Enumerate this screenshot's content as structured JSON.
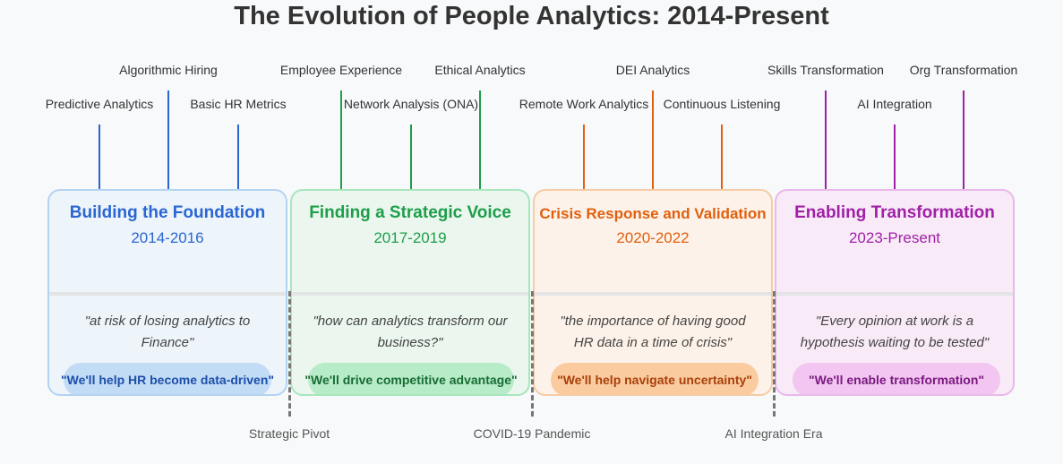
{
  "title": "The Evolution of People Analytics: 2014-Present",
  "phases": [
    {
      "heading": "Building the Foundation",
      "dates": "2014-2016",
      "quote": "\"at risk of losing analytics to Finance\"",
      "pill": "\"We'll help HR become data-driven\"",
      "color": "#2a66d2",
      "bg": "#edf4fa",
      "border": "#b3d3f2",
      "pill_bg": "#c3dcf6",
      "pill_text": "#1d4fa8"
    },
    {
      "heading": "Finding a Strategic Voice",
      "dates": "2017-2019",
      "quote": "\"how can analytics transform our business?\"",
      "pill": "\"We'll drive competitive advantage\"",
      "color": "#1e9e4a",
      "bg": "#eaf6ee",
      "border": "#a8e6bd",
      "pill_bg": "#b8ebc8",
      "pill_text": "#176d34"
    },
    {
      "heading": "Crisis Response and Validation",
      "dates": "2020-2022",
      "quote": "\"the importance of having good HR data in a time of crisis\"",
      "pill": "\"We'll help navigate uncertainty\"",
      "color": "#e0600f",
      "bg": "#fdf2e9",
      "border": "#f5cca4",
      "pill_bg": "#fbcba0",
      "pill_text": "#a8400a"
    },
    {
      "heading": "Enabling Transformation",
      "dates": "2023-Present",
      "quote": "\"Every opinion at work is a hypothesis waiting to be tested\"",
      "pill": "\"We'll enable transformation\"",
      "color": "#a020a8",
      "bg": "#f8eaf7",
      "border": "#eab8ec",
      "pill_bg": "#f2c6f1",
      "pill_text": "#7a1a80"
    }
  ],
  "milestones": [
    {
      "label": "Predictive Analytics",
      "color": "#2a66d2"
    },
    {
      "label": "Algorithmic Hiring",
      "color": "#2a66d2"
    },
    {
      "label": "Basic HR Metrics",
      "color": "#2a66d2"
    },
    {
      "label": "Employee Experience",
      "color": "#1e9e4a"
    },
    {
      "label": "Network Analysis (ONA)",
      "color": "#1e9e4a"
    },
    {
      "label": "Ethical Analytics",
      "color": "#1e9e4a"
    },
    {
      "label": "Remote Work Analytics",
      "color": "#e0600f"
    },
    {
      "label": "DEI Analytics",
      "color": "#e0600f"
    },
    {
      "label": "Continuous Listening",
      "color": "#e0600f"
    },
    {
      "label": "Skills Transformation",
      "color": "#a020a8"
    },
    {
      "label": "AI Integration",
      "color": "#a020a8"
    },
    {
      "label": "Org Transformation",
      "color": "#a020a8"
    }
  ],
  "pivots": [
    "Strategic Pivot",
    "COVID-19 Pandemic",
    "AI Integration Era"
  ]
}
